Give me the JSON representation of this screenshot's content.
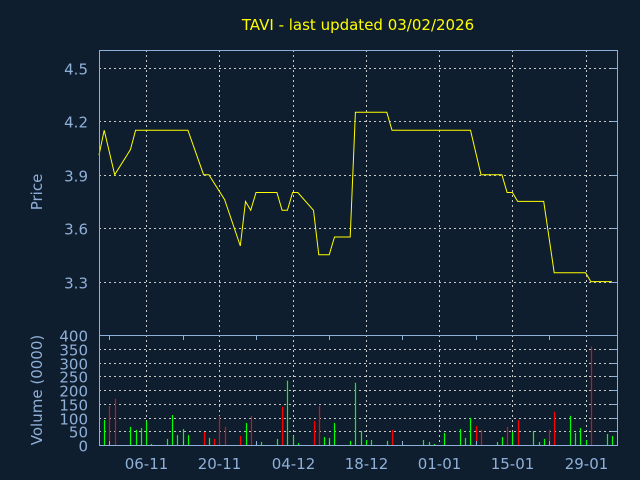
{
  "colors": {
    "background": "#0f1e2f",
    "axis": "#8fb0d8",
    "grid": "#c8c8c8",
    "price_line": "#ffff00",
    "volume_up": "#00ff00",
    "volume_down": "#ff0000",
    "title": "#ffff00"
  },
  "chart_data": [
    {
      "type": "line",
      "title": "TAVI - last updated 03/02/2026",
      "ylabel": "Price",
      "xlabel": "",
      "ylim": [
        3.0,
        4.6
      ],
      "xlim": [
        "2025-10-28",
        "2026-02-04"
      ],
      "yticks": [
        "4.5",
        "4.2",
        "3.9",
        "3.6",
        "3.3"
      ],
      "xticks": [
        {
          "date": "2025-11-06",
          "label": "06-11"
        },
        {
          "date": "2025-11-20",
          "label": "20-11"
        },
        {
          "date": "2025-12-04",
          "label": "04-12"
        },
        {
          "date": "2025-12-18",
          "label": "18-12"
        },
        {
          "date": "2026-01-01",
          "label": "01-01"
        },
        {
          "date": "2026-01-15",
          "label": "15-01"
        },
        {
          "date": "2026-01-29",
          "label": "29-01"
        }
      ],
      "grid": true,
      "series": [
        {
          "points": [
            [
              "2025-10-28",
              4.01
            ],
            [
              "2025-10-29",
              4.15
            ],
            [
              "2025-10-31",
              3.9
            ],
            [
              "2025-11-03",
              4.04
            ],
            [
              "2025-11-04",
              4.15
            ],
            [
              "2025-11-14",
              4.15
            ],
            [
              "2025-11-17",
              3.9
            ],
            [
              "2025-11-18",
              3.9
            ],
            [
              "2025-11-21",
              3.76
            ],
            [
              "2025-11-24",
              3.5
            ],
            [
              "2025-11-25",
              3.75
            ],
            [
              "2025-11-26",
              3.7
            ],
            [
              "2025-11-27",
              3.8
            ],
            [
              "2025-12-01",
              3.8
            ],
            [
              "2025-12-02",
              3.7
            ],
            [
              "2025-12-03",
              3.7
            ],
            [
              "2025-12-04",
              3.8
            ],
            [
              "2025-12-05",
              3.8
            ],
            [
              "2025-12-08",
              3.7
            ],
            [
              "2025-12-09",
              3.45
            ],
            [
              "2025-12-11",
              3.45
            ],
            [
              "2025-12-12",
              3.55
            ],
            [
              "2025-12-15",
              3.55
            ],
            [
              "2025-12-16",
              4.25
            ],
            [
              "2025-12-22",
              4.25
            ],
            [
              "2025-12-23",
              4.15
            ],
            [
              "2026-01-07",
              4.15
            ],
            [
              "2026-01-09",
              3.9
            ],
            [
              "2026-01-13",
              3.9
            ],
            [
              "2026-01-14",
              3.8
            ],
            [
              "2026-01-15",
              3.8
            ],
            [
              "2026-01-16",
              3.75
            ],
            [
              "2026-01-21",
              3.75
            ],
            [
              "2026-01-23",
              3.35
            ],
            [
              "2026-01-29",
              3.35
            ],
            [
              "2026-01-30",
              3.3
            ],
            [
              "2026-02-03",
              3.3
            ]
          ]
        }
      ]
    },
    {
      "type": "bar",
      "ylabel": "Volume (0000)",
      "ylim": [
        0,
        400
      ],
      "yticks": [
        "400",
        "350",
        "300",
        "250",
        "200",
        "150",
        "100",
        "50",
        "0"
      ],
      "grid": true,
      "bars": [
        [
          "2025-10-29",
          91,
          "up"
        ],
        [
          "2025-10-30",
          142,
          "down"
        ],
        [
          "2025-10-31",
          168,
          "down"
        ],
        [
          "2025-11-03",
          66,
          "up"
        ],
        [
          "2025-11-04",
          55,
          "up"
        ],
        [
          "2025-11-05",
          62,
          "up"
        ],
        [
          "2025-11-06",
          88,
          "up"
        ],
        [
          "2025-11-07",
          4,
          "up"
        ],
        [
          "2025-11-10",
          22,
          "up"
        ],
        [
          "2025-11-11",
          109,
          "up"
        ],
        [
          "2025-11-12",
          36,
          "up"
        ],
        [
          "2025-11-13",
          58,
          "up"
        ],
        [
          "2025-11-14",
          36,
          "up"
        ],
        [
          "2025-11-17",
          47,
          "down"
        ],
        [
          "2025-11-18",
          26,
          "up"
        ],
        [
          "2025-11-19",
          22,
          "down"
        ],
        [
          "2025-11-20",
          106,
          "down"
        ],
        [
          "2025-11-21",
          66,
          "down"
        ],
        [
          "2025-11-24",
          33,
          "down"
        ],
        [
          "2025-11-25",
          80,
          "up"
        ],
        [
          "2025-11-26",
          106,
          "down"
        ],
        [
          "2025-11-27",
          7,
          "up"
        ],
        [
          "2025-11-28",
          11,
          "up"
        ],
        [
          "2025-12-01",
          22,
          "up"
        ],
        [
          "2025-12-02",
          139,
          "down"
        ],
        [
          "2025-12-03",
          234,
          "up"
        ],
        [
          "2025-12-04",
          33,
          "up"
        ],
        [
          "2025-12-05",
          7,
          "up"
        ],
        [
          "2025-12-08",
          88,
          "down"
        ],
        [
          "2025-12-09",
          142,
          "down"
        ],
        [
          "2025-12-10",
          29,
          "up"
        ],
        [
          "2025-12-11",
          26,
          "up"
        ],
        [
          "2025-12-12",
          80,
          "up"
        ],
        [
          "2025-12-15",
          15,
          "up"
        ],
        [
          "2025-12-16",
          226,
          "up"
        ],
        [
          "2025-12-17",
          51,
          "up"
        ],
        [
          "2025-12-18",
          18,
          "up"
        ],
        [
          "2025-12-19",
          18,
          "up"
        ],
        [
          "2025-12-22",
          15,
          "up"
        ],
        [
          "2025-12-23",
          55,
          "down"
        ],
        [
          "2025-12-29",
          18,
          "up"
        ],
        [
          "2025-12-30",
          11,
          "up"
        ],
        [
          "2025-12-31",
          4,
          "up"
        ],
        [
          "2026-01-02",
          44,
          "up"
        ],
        [
          "2026-01-05",
          58,
          "up"
        ],
        [
          "2026-01-06",
          26,
          "up"
        ],
        [
          "2026-01-07",
          99,
          "up"
        ],
        [
          "2026-01-08",
          69,
          "down"
        ],
        [
          "2026-01-09",
          55,
          "down"
        ],
        [
          "2026-01-12",
          11,
          "up"
        ],
        [
          "2026-01-13",
          29,
          "up"
        ],
        [
          "2026-01-14",
          66,
          "down"
        ],
        [
          "2026-01-15",
          47,
          "up"
        ],
        [
          "2026-01-16",
          91,
          "down"
        ],
        [
          "2026-01-19",
          51,
          "up"
        ],
        [
          "2026-01-20",
          11,
          "up"
        ],
        [
          "2026-01-21",
          22,
          "up"
        ],
        [
          "2026-01-22",
          55,
          "down"
        ],
        [
          "2026-01-23",
          121,
          "down"
        ],
        [
          "2026-01-26",
          106,
          "up"
        ],
        [
          "2026-01-27",
          44,
          "up"
        ],
        [
          "2026-01-28",
          62,
          "up"
        ],
        [
          "2026-01-29",
          18,
          "up"
        ],
        [
          "2026-01-30",
          358,
          "down"
        ],
        [
          "2026-02-02",
          40,
          "up"
        ],
        [
          "2026-02-03",
          33,
          "up"
        ]
      ]
    }
  ]
}
